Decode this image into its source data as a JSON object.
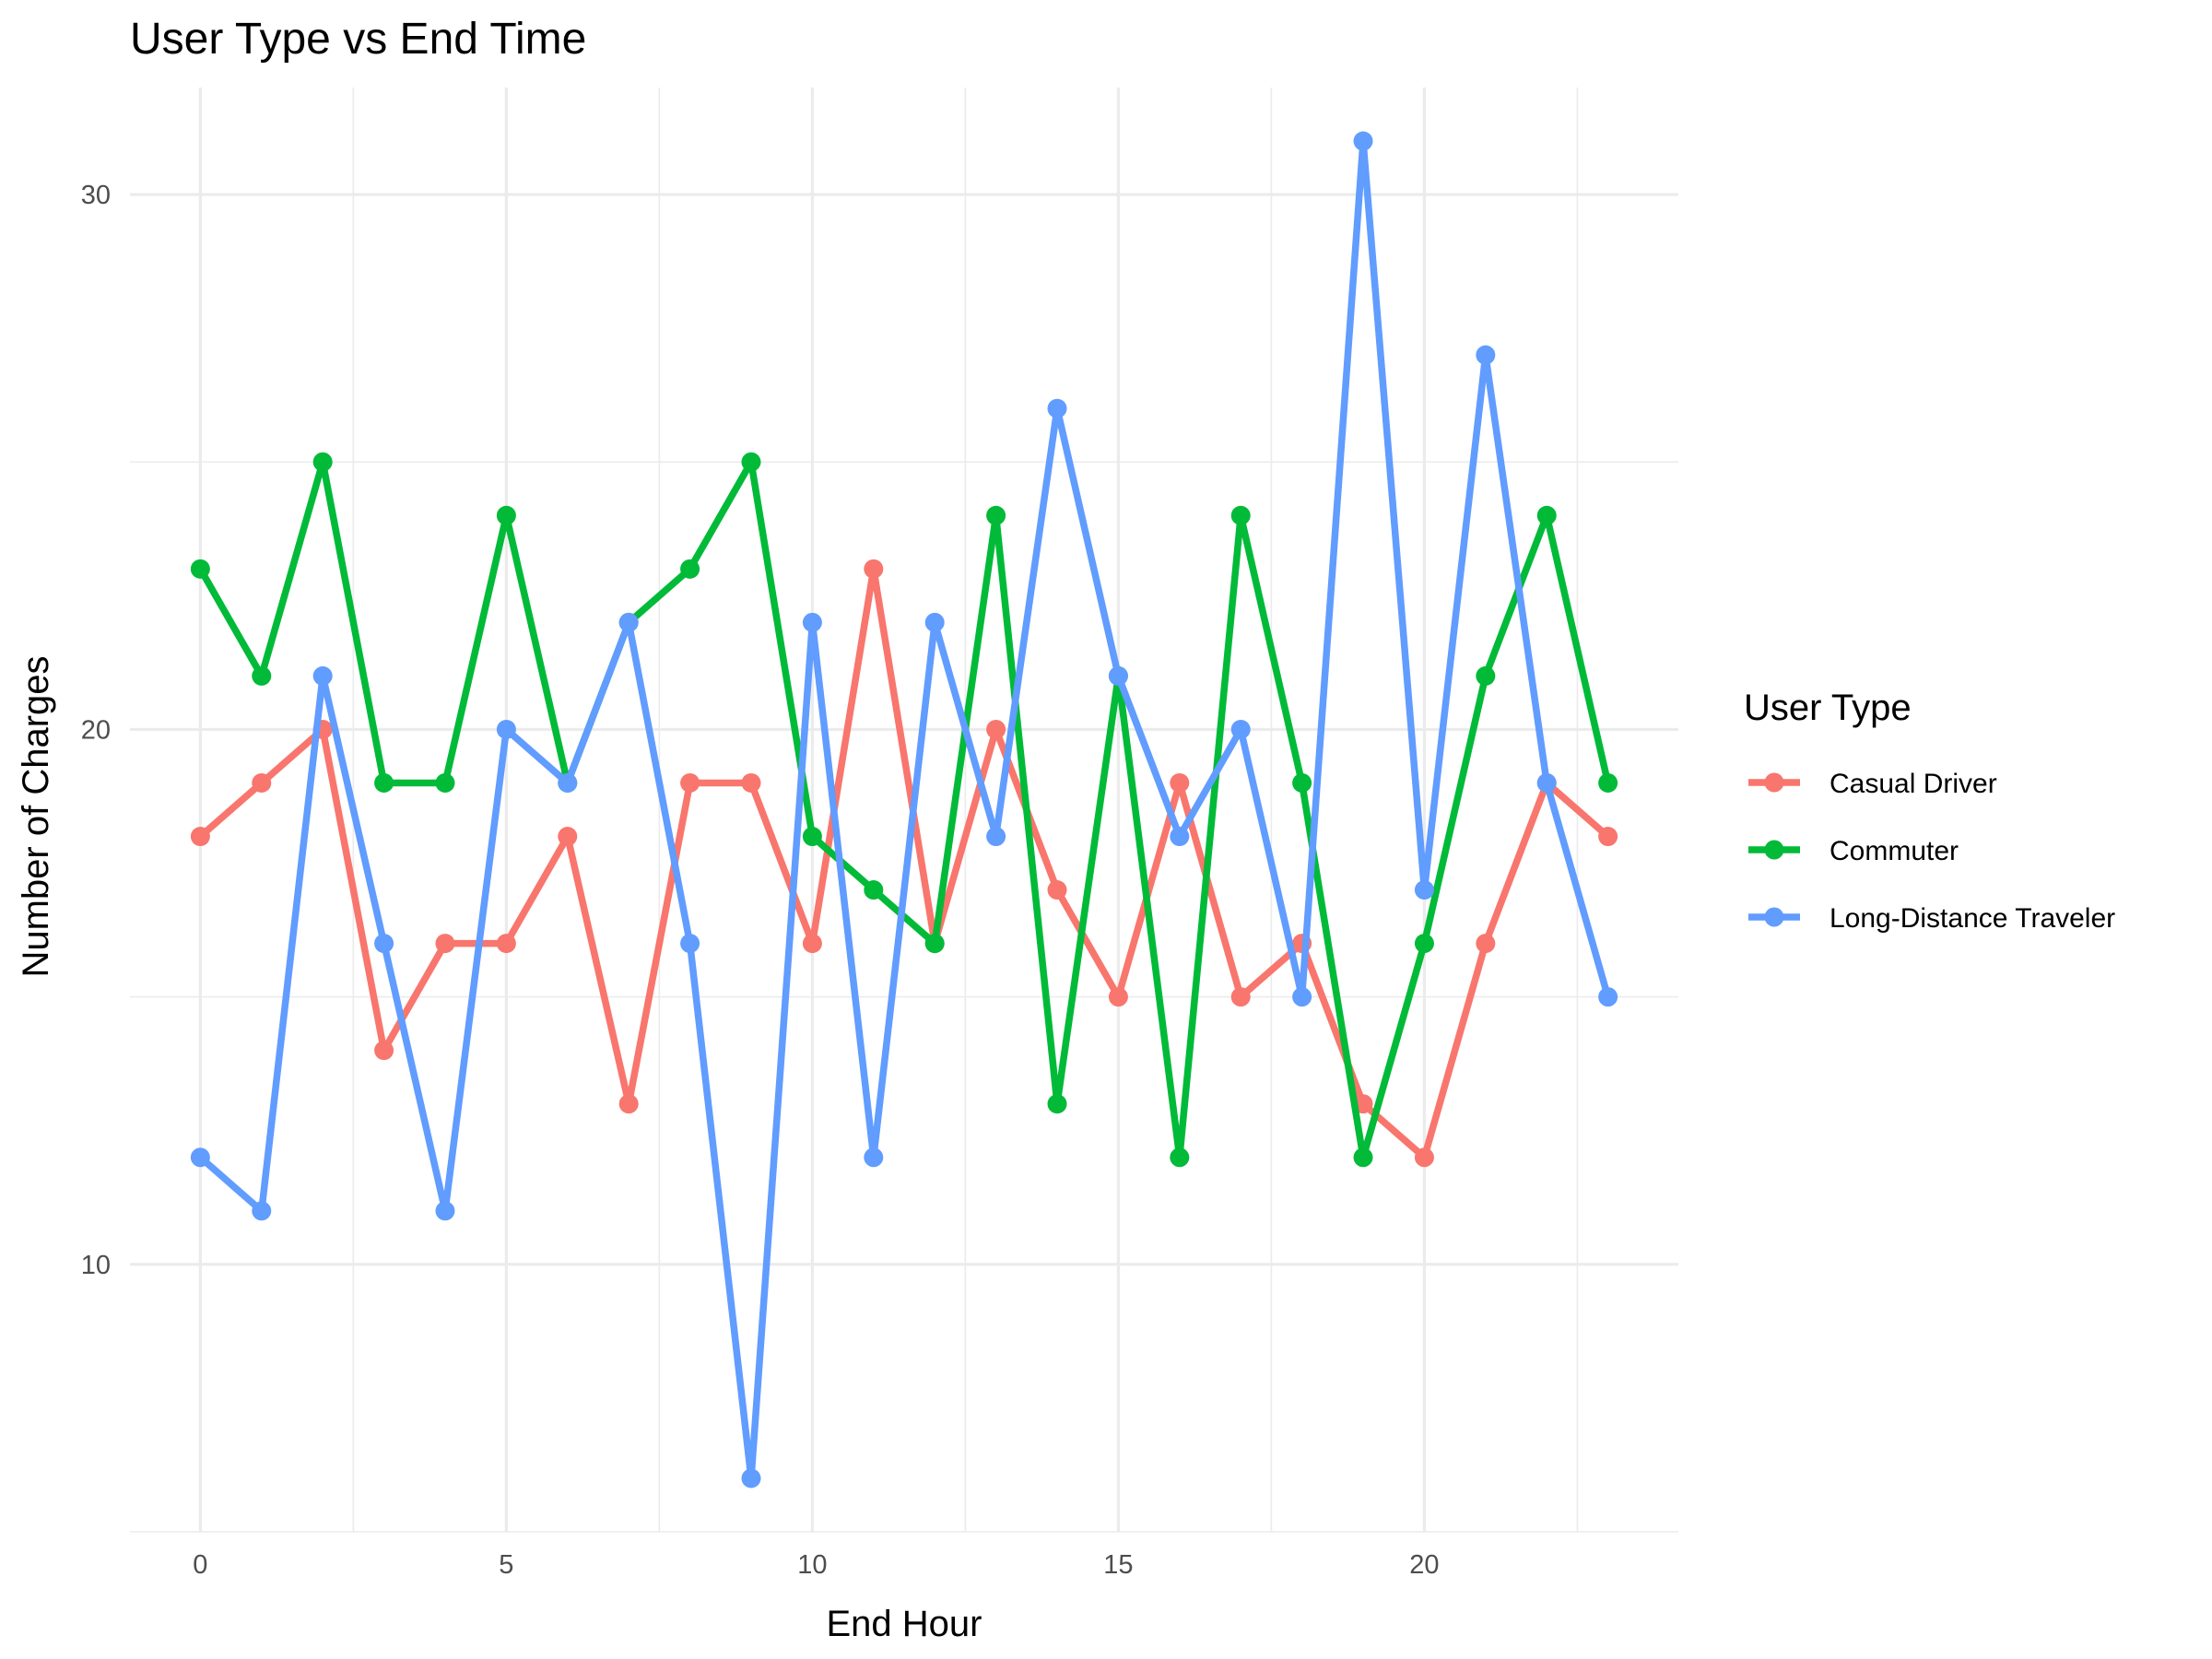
{
  "chart_data": {
    "type": "line",
    "title": "User Type vs End Time",
    "xlabel": "End Hour",
    "ylabel": "Number of Charges",
    "x": [
      0,
      1,
      2,
      3,
      4,
      5,
      6,
      7,
      8,
      9,
      10,
      11,
      12,
      13,
      14,
      15,
      16,
      17,
      18,
      19,
      20,
      21,
      22,
      23
    ],
    "xlim": [
      -1.15,
      24.15
    ],
    "ylim": [
      5,
      32
    ],
    "x_ticks": [
      0,
      5,
      10,
      15,
      20
    ],
    "x_tick_labels": [
      "0",
      "5",
      "10",
      "15",
      "20"
    ],
    "x_minor_ticks": [
      2.5,
      7.5,
      12.5,
      17.5,
      22.5
    ],
    "y_ticks": [
      10,
      20,
      30
    ],
    "y_tick_labels": [
      "10",
      "20",
      "30"
    ],
    "y_minor_ticks": [
      5,
      15,
      25
    ],
    "grid": true,
    "legend": {
      "title": "User Type",
      "placement": "right"
    },
    "series": [
      {
        "name": "Casual Driver",
        "color": "#F8766D",
        "values": [
          18,
          19,
          20,
          14,
          16,
          16,
          18,
          13,
          19,
          19,
          16,
          23,
          16,
          20,
          17,
          15,
          19,
          15,
          16,
          13,
          12,
          16,
          19,
          18
        ]
      },
      {
        "name": "Commuter",
        "color": "#00BA38",
        "values": [
          23,
          21,
          25,
          19,
          19,
          24,
          19,
          22,
          23,
          25,
          18,
          17,
          16,
          24,
          13,
          21,
          12,
          24,
          19,
          12,
          16,
          21,
          24,
          19
        ]
      },
      {
        "name": "Long-Distance Traveler",
        "color": "#619CFF",
        "values": [
          12,
          11,
          21,
          16,
          11,
          20,
          19,
          22,
          16,
          6,
          22,
          12,
          22,
          18,
          26,
          21,
          18,
          20,
          15,
          31,
          17,
          27,
          19,
          15
        ]
      }
    ]
  }
}
